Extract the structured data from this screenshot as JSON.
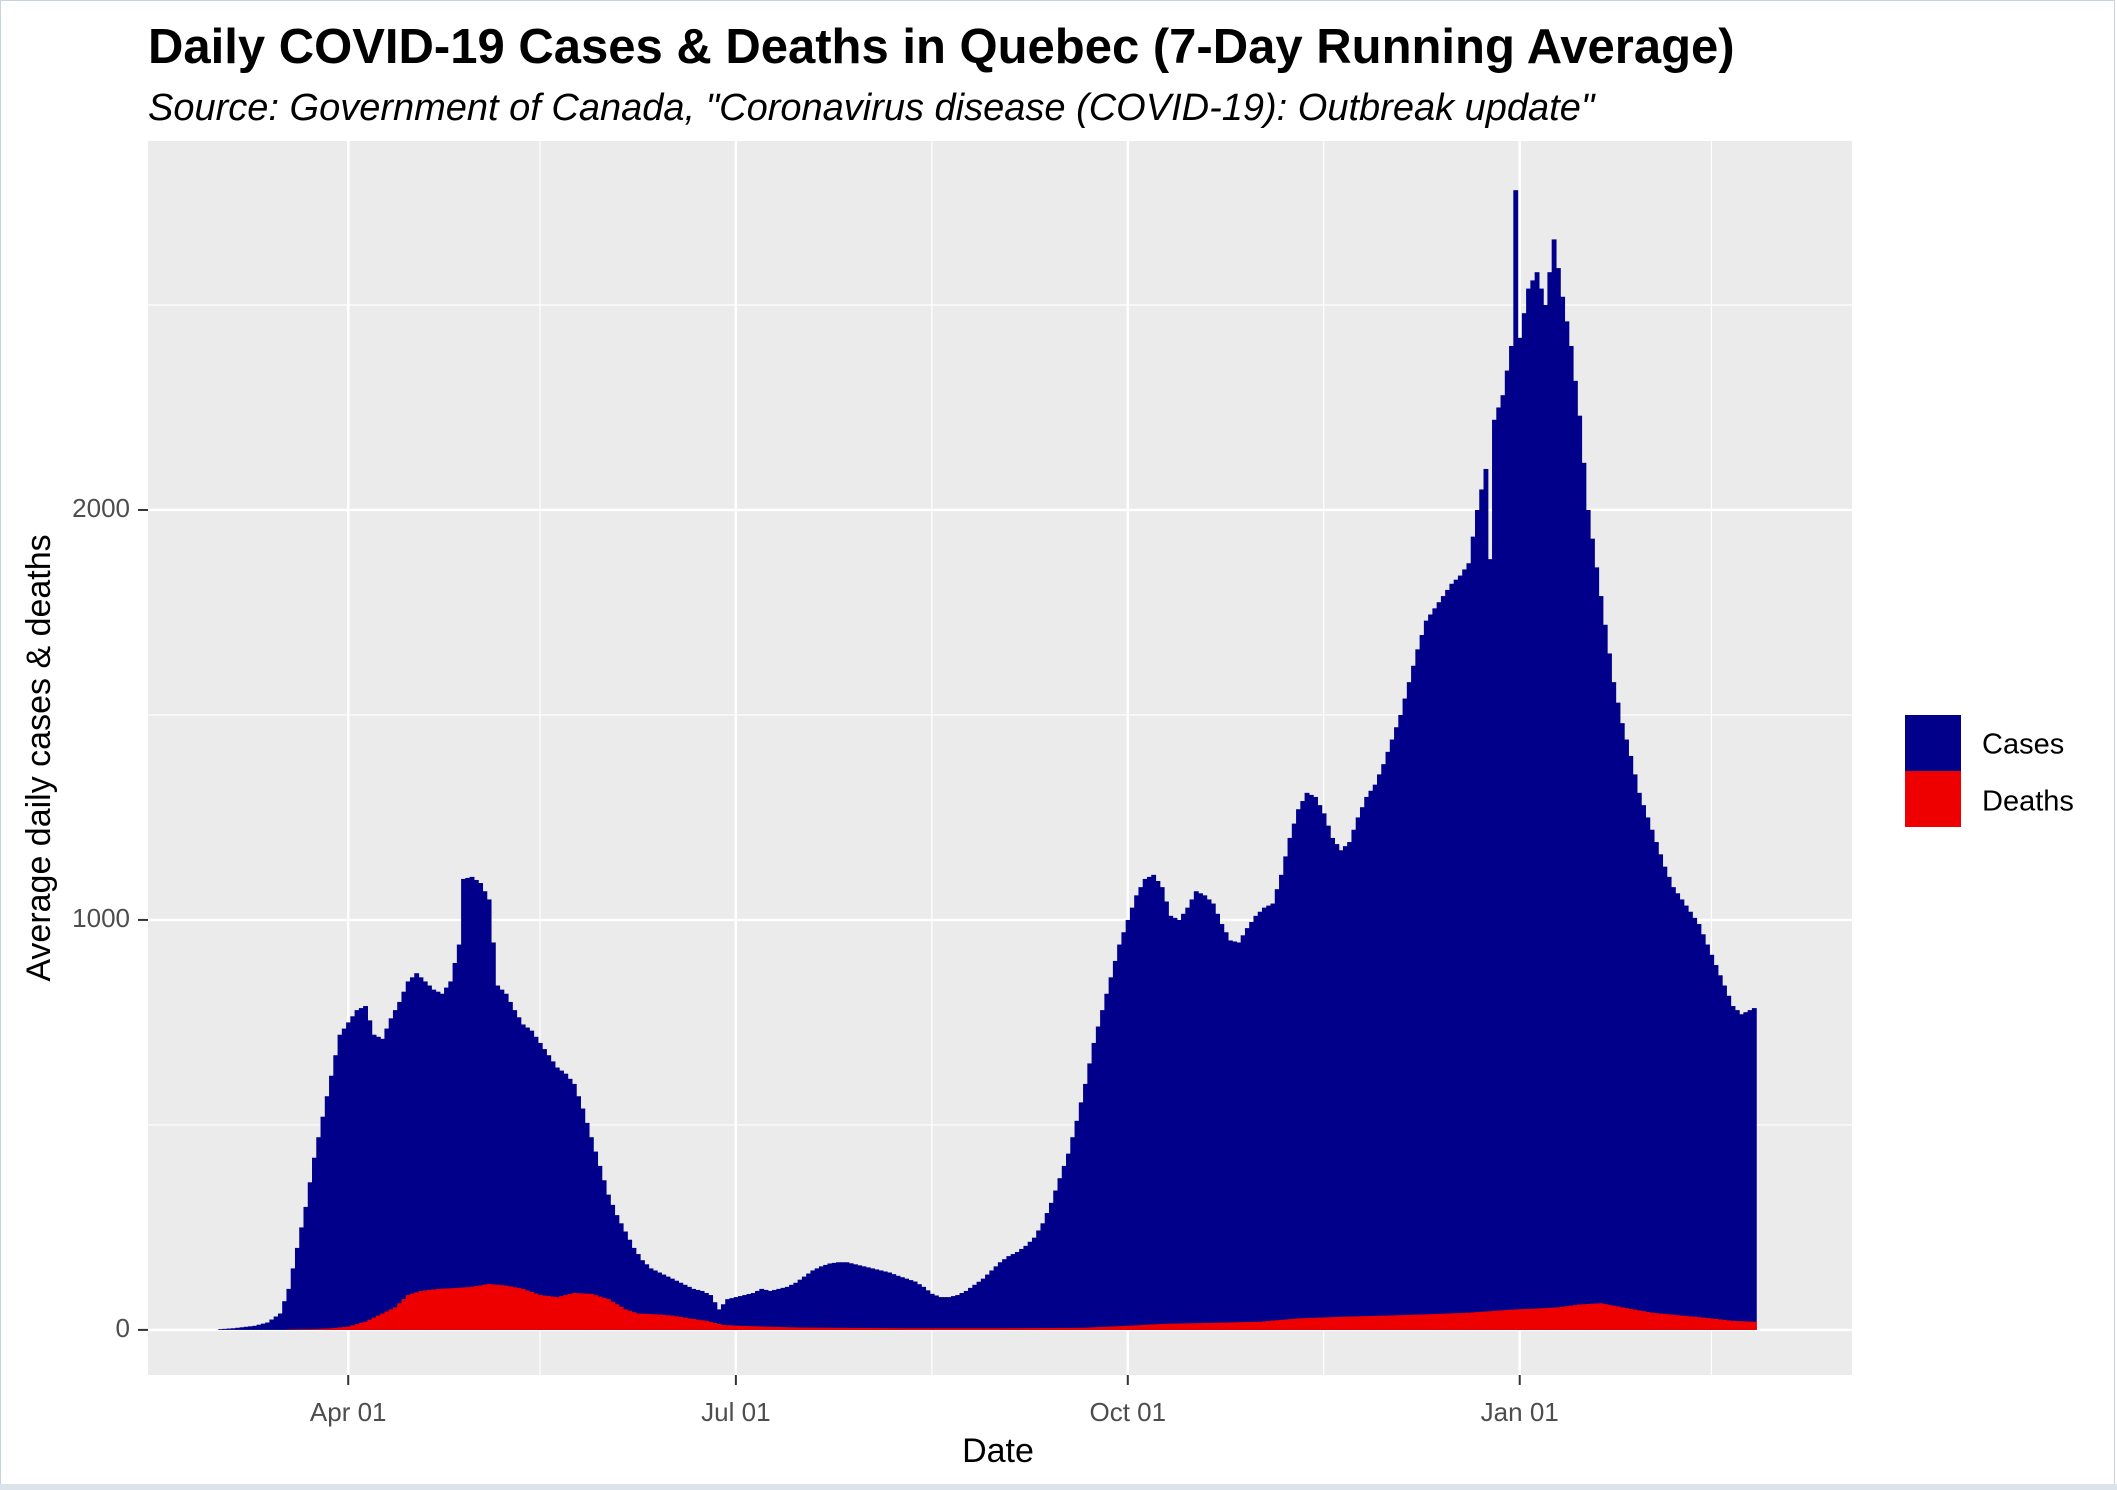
{
  "chart_data": {
    "type": "bar",
    "title": "Daily COVID-19 Cases & Deaths in Quebec (7-Day Running Average)",
    "subtitle": "Source: Government of Canada, \"Coronavirus disease (COVID-19): Outbreak update\"",
    "xlabel": "Date",
    "ylabel": "Average daily cases & deaths",
    "x_ticks": [
      "Apr 01",
      "Jul 01",
      "Oct 01",
      "Jan 01"
    ],
    "y_ticks": [
      "0",
      "1000",
      "2000"
    ],
    "ylim": [
      -110,
      2900
    ],
    "xlim": [
      "2020-02-14",
      "2021-03-20"
    ],
    "grid": true,
    "legend_position": "right",
    "colors": {
      "Cases": "#00008b",
      "Deaths": "#ee0000",
      "panel": "#ebebeb",
      "grid": "#ffffff"
    },
    "series": [
      {
        "name": "Cases",
        "points": [
          [
            "2020-03-02",
            2
          ],
          [
            "2020-03-05",
            4
          ],
          [
            "2020-03-10",
            10
          ],
          [
            "2020-03-13",
            18
          ],
          [
            "2020-03-16",
            40
          ],
          [
            "2020-03-18",
            100
          ],
          [
            "2020-03-20",
            200
          ],
          [
            "2020-03-22",
            300
          ],
          [
            "2020-03-24",
            420
          ],
          [
            "2020-03-26",
            520
          ],
          [
            "2020-03-28",
            620
          ],
          [
            "2020-03-30",
            720
          ],
          [
            "2020-04-01",
            750
          ],
          [
            "2020-04-03",
            780
          ],
          [
            "2020-04-05",
            790
          ],
          [
            "2020-04-07",
            720
          ],
          [
            "2020-04-09",
            710
          ],
          [
            "2020-04-11",
            760
          ],
          [
            "2020-04-13",
            800
          ],
          [
            "2020-04-15",
            850
          ],
          [
            "2020-04-17",
            870
          ],
          [
            "2020-04-19",
            850
          ],
          [
            "2020-04-21",
            830
          ],
          [
            "2020-04-23",
            820
          ],
          [
            "2020-04-25",
            850
          ],
          [
            "2020-04-27",
            940
          ],
          [
            "2020-04-28",
            1100
          ],
          [
            "2020-04-30",
            1105
          ],
          [
            "2020-05-02",
            1090
          ],
          [
            "2020-05-04",
            1050
          ],
          [
            "2020-05-06",
            840
          ],
          [
            "2020-05-08",
            820
          ],
          [
            "2020-05-10",
            780
          ],
          [
            "2020-05-12",
            745
          ],
          [
            "2020-05-14",
            730
          ],
          [
            "2020-05-16",
            700
          ],
          [
            "2020-05-18",
            670
          ],
          [
            "2020-05-20",
            640
          ],
          [
            "2020-05-22",
            625
          ],
          [
            "2020-05-24",
            600
          ],
          [
            "2020-05-26",
            540
          ],
          [
            "2020-05-28",
            470
          ],
          [
            "2020-05-30",
            400
          ],
          [
            "2020-06-01",
            330
          ],
          [
            "2020-06-03",
            280
          ],
          [
            "2020-06-05",
            240
          ],
          [
            "2020-06-07",
            200
          ],
          [
            "2020-06-09",
            170
          ],
          [
            "2020-06-11",
            150
          ],
          [
            "2020-06-13",
            140
          ],
          [
            "2020-06-15",
            130
          ],
          [
            "2020-06-17",
            120
          ],
          [
            "2020-06-19",
            110
          ],
          [
            "2020-06-21",
            100
          ],
          [
            "2020-06-23",
            95
          ],
          [
            "2020-06-25",
            85
          ],
          [
            "2020-06-27",
            50
          ],
          [
            "2020-06-29",
            75
          ],
          [
            "2020-07-01",
            80
          ],
          [
            "2020-07-03",
            85
          ],
          [
            "2020-07-05",
            90
          ],
          [
            "2020-07-07",
            100
          ],
          [
            "2020-07-09",
            95
          ],
          [
            "2020-07-11",
            100
          ],
          [
            "2020-07-13",
            105
          ],
          [
            "2020-07-15",
            115
          ],
          [
            "2020-07-17",
            130
          ],
          [
            "2020-07-19",
            145
          ],
          [
            "2020-07-21",
            155
          ],
          [
            "2020-07-23",
            162
          ],
          [
            "2020-07-25",
            165
          ],
          [
            "2020-07-27",
            165
          ],
          [
            "2020-07-29",
            160
          ],
          [
            "2020-07-31",
            155
          ],
          [
            "2020-08-02",
            150
          ],
          [
            "2020-08-04",
            145
          ],
          [
            "2020-08-06",
            140
          ],
          [
            "2020-08-08",
            132
          ],
          [
            "2020-08-10",
            125
          ],
          [
            "2020-08-12",
            118
          ],
          [
            "2020-08-14",
            105
          ],
          [
            "2020-08-16",
            88
          ],
          [
            "2020-08-18",
            80
          ],
          [
            "2020-08-20",
            80
          ],
          [
            "2020-08-22",
            85
          ],
          [
            "2020-08-24",
            95
          ],
          [
            "2020-08-26",
            110
          ],
          [
            "2020-08-28",
            125
          ],
          [
            "2020-08-30",
            145
          ],
          [
            "2020-09-01",
            165
          ],
          [
            "2020-09-03",
            180
          ],
          [
            "2020-09-05",
            190
          ],
          [
            "2020-09-07",
            205
          ],
          [
            "2020-09-09",
            225
          ],
          [
            "2020-09-11",
            260
          ],
          [
            "2020-09-13",
            310
          ],
          [
            "2020-09-15",
            370
          ],
          [
            "2020-09-17",
            430
          ],
          [
            "2020-09-19",
            510
          ],
          [
            "2020-09-21",
            600
          ],
          [
            "2020-09-23",
            700
          ],
          [
            "2020-09-25",
            780
          ],
          [
            "2020-09-27",
            860
          ],
          [
            "2020-09-29",
            940
          ],
          [
            "2020-10-01",
            1000
          ],
          [
            "2020-10-03",
            1060
          ],
          [
            "2020-10-05",
            1100
          ],
          [
            "2020-10-07",
            1110
          ],
          [
            "2020-10-09",
            1080
          ],
          [
            "2020-10-11",
            1010
          ],
          [
            "2020-10-13",
            1000
          ],
          [
            "2020-10-15",
            1030
          ],
          [
            "2020-10-17",
            1070
          ],
          [
            "2020-10-19",
            1060
          ],
          [
            "2020-10-21",
            1040
          ],
          [
            "2020-10-23",
            990
          ],
          [
            "2020-10-25",
            950
          ],
          [
            "2020-10-27",
            945
          ],
          [
            "2020-10-29",
            980
          ],
          [
            "2020-10-31",
            1010
          ],
          [
            "2020-11-02",
            1030
          ],
          [
            "2020-11-04",
            1040
          ],
          [
            "2020-11-06",
            1110
          ],
          [
            "2020-11-08",
            1200
          ],
          [
            "2020-11-10",
            1270
          ],
          [
            "2020-11-12",
            1310
          ],
          [
            "2020-11-14",
            1300
          ],
          [
            "2020-11-16",
            1260
          ],
          [
            "2020-11-18",
            1200
          ],
          [
            "2020-11-20",
            1170
          ],
          [
            "2020-11-22",
            1190
          ],
          [
            "2020-11-24",
            1250
          ],
          [
            "2020-11-26",
            1300
          ],
          [
            "2020-11-28",
            1330
          ],
          [
            "2020-11-30",
            1380
          ],
          [
            "2020-12-02",
            1440
          ],
          [
            "2020-12-04",
            1500
          ],
          [
            "2020-12-06",
            1580
          ],
          [
            "2020-12-08",
            1660
          ],
          [
            "2020-12-10",
            1730
          ],
          [
            "2020-12-12",
            1760
          ],
          [
            "2020-12-14",
            1790
          ],
          [
            "2020-12-16",
            1820
          ],
          [
            "2020-12-18",
            1840
          ],
          [
            "2020-12-20",
            1870
          ],
          [
            "2020-12-22",
            2000
          ],
          [
            "2020-12-24",
            2100
          ],
          [
            "2020-12-25",
            1880
          ],
          [
            "2020-12-26",
            2220
          ],
          [
            "2020-12-28",
            2280
          ],
          [
            "2020-12-30",
            2400
          ],
          [
            "2020-12-31",
            2780
          ],
          [
            "2021-01-01",
            2420
          ],
          [
            "2021-01-03",
            2540
          ],
          [
            "2021-01-05",
            2580
          ],
          [
            "2021-01-07",
            2500
          ],
          [
            "2021-01-09",
            2660
          ],
          [
            "2021-01-11",
            2520
          ],
          [
            "2021-01-13",
            2400
          ],
          [
            "2021-01-15",
            2230
          ],
          [
            "2021-01-17",
            2000
          ],
          [
            "2021-01-19",
            1860
          ],
          [
            "2021-01-21",
            1720
          ],
          [
            "2021-01-23",
            1580
          ],
          [
            "2021-01-25",
            1480
          ],
          [
            "2021-01-27",
            1400
          ],
          [
            "2021-01-29",
            1310
          ],
          [
            "2021-01-31",
            1250
          ],
          [
            "2021-02-02",
            1190
          ],
          [
            "2021-02-04",
            1130
          ],
          [
            "2021-02-06",
            1080
          ],
          [
            "2021-02-08",
            1050
          ],
          [
            "2021-02-10",
            1020
          ],
          [
            "2021-02-12",
            990
          ],
          [
            "2021-02-14",
            940
          ],
          [
            "2021-02-16",
            890
          ],
          [
            "2021-02-18",
            840
          ],
          [
            "2021-02-20",
            790
          ],
          [
            "2021-02-22",
            770
          ],
          [
            "2021-02-24",
            780
          ],
          [
            "2021-02-25",
            785
          ]
        ]
      },
      {
        "name": "Deaths",
        "points": [
          [
            "2020-03-18",
            1
          ],
          [
            "2020-03-24",
            2
          ],
          [
            "2020-03-28",
            4
          ],
          [
            "2020-04-01",
            8
          ],
          [
            "2020-04-05",
            20
          ],
          [
            "2020-04-08",
            35
          ],
          [
            "2020-04-12",
            55
          ],
          [
            "2020-04-15",
            85
          ],
          [
            "2020-04-18",
            95
          ],
          [
            "2020-04-22",
            100
          ],
          [
            "2020-04-26",
            102
          ],
          [
            "2020-04-30",
            105
          ],
          [
            "2020-05-04",
            112
          ],
          [
            "2020-05-08",
            108
          ],
          [
            "2020-05-12",
            100
          ],
          [
            "2020-05-16",
            85
          ],
          [
            "2020-05-20",
            80
          ],
          [
            "2020-05-24",
            90
          ],
          [
            "2020-05-28",
            88
          ],
          [
            "2020-06-01",
            75
          ],
          [
            "2020-06-05",
            50
          ],
          [
            "2020-06-08",
            40
          ],
          [
            "2020-06-12",
            38
          ],
          [
            "2020-06-16",
            35
          ],
          [
            "2020-06-20",
            28
          ],
          [
            "2020-06-24",
            22
          ],
          [
            "2020-06-28",
            12
          ],
          [
            "2020-07-02",
            10
          ],
          [
            "2020-07-08",
            8
          ],
          [
            "2020-07-15",
            6
          ],
          [
            "2020-07-25",
            5
          ],
          [
            "2020-08-10",
            4
          ],
          [
            "2020-09-01",
            4
          ],
          [
            "2020-09-20",
            5
          ],
          [
            "2020-10-01",
            10
          ],
          [
            "2020-10-10",
            15
          ],
          [
            "2020-10-20",
            17
          ],
          [
            "2020-11-01",
            20
          ],
          [
            "2020-11-10",
            28
          ],
          [
            "2020-11-20",
            32
          ],
          [
            "2020-12-01",
            35
          ],
          [
            "2020-12-10",
            38
          ],
          [
            "2020-12-20",
            42
          ],
          [
            "2020-12-31",
            50
          ],
          [
            "2021-01-05",
            52
          ],
          [
            "2021-01-10",
            55
          ],
          [
            "2021-01-15",
            62
          ],
          [
            "2021-01-20",
            65
          ],
          [
            "2021-01-25",
            55
          ],
          [
            "2021-02-01",
            42
          ],
          [
            "2021-02-08",
            35
          ],
          [
            "2021-02-15",
            28
          ],
          [
            "2021-02-20",
            22
          ],
          [
            "2021-02-25",
            20
          ]
        ]
      }
    ]
  }
}
